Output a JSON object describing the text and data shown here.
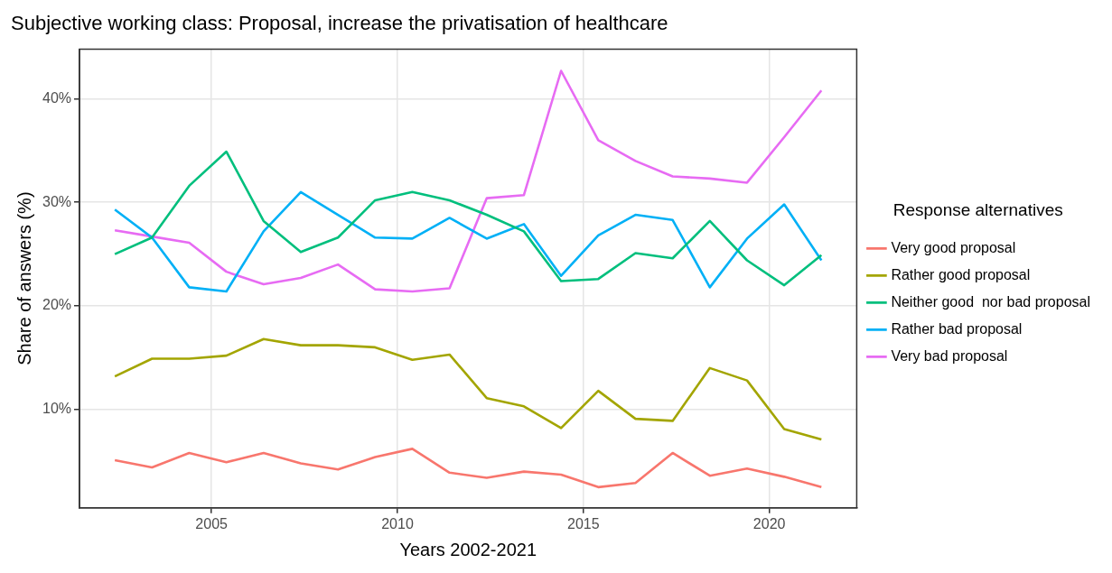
{
  "chart_data": {
    "type": "line",
    "title": "Subjective working class: Proposal, increase the privatisation of healthcare",
    "xlabel": "Years 2002-2021",
    "ylabel": "Share of answers (%)",
    "legend_title": "Response alternatives",
    "x": [
      2002.4,
      2003.4,
      2004.4,
      2005.4,
      2006.4,
      2007.4,
      2008.4,
      2009.4,
      2010.4,
      2011.4,
      2012.4,
      2013.4,
      2014.4,
      2015.4,
      2016.4,
      2017.4,
      2018.4,
      2019.4,
      2020.4,
      2021.4
    ],
    "xlim": [
      2001.45,
      2022.35
    ],
    "xticks": [
      2005,
      2010,
      2015,
      2020
    ],
    "ylim": [
      0.5,
      44.8
    ],
    "yticks": [
      {
        "value": 10,
        "label": "10%"
      },
      {
        "value": 20,
        "label": "20%"
      },
      {
        "value": 30,
        "label": "30%"
      },
      {
        "value": 40,
        "label": "40%"
      }
    ],
    "grid": true,
    "legend": "right",
    "marker": "none",
    "line_style": "solid",
    "series": [
      {
        "name": "Very good proposal",
        "color": "#f8766d",
        "values": [
          5.1,
          4.4,
          5.8,
          4.9,
          5.8,
          4.8,
          4.2,
          5.4,
          6.2,
          3.9,
          3.4,
          4.0,
          3.7,
          2.5,
          2.9,
          5.8,
          3.6,
          4.3,
          3.5,
          2.5
        ]
      },
      {
        "name": "Rather good proposal",
        "color": "#a3a500",
        "values": [
          13.2,
          14.9,
          14.9,
          15.2,
          16.8,
          16.2,
          16.2,
          16.0,
          14.8,
          15.3,
          11.1,
          10.3,
          8.2,
          11.8,
          9.1,
          8.9,
          14.0,
          12.8,
          8.1,
          7.1
        ]
      },
      {
        "name": "Neither good  nor bad proposal",
        "color": "#00bf7d",
        "values": [
          25.0,
          26.6,
          31.6,
          34.9,
          28.2,
          25.2,
          26.6,
          30.2,
          31.0,
          30.2,
          28.8,
          27.2,
          22.4,
          22.6,
          25.1,
          24.6,
          28.2,
          24.4,
          22.0,
          24.9
        ]
      },
      {
        "name": "Rather bad proposal",
        "color": "#00b0f6",
        "values": [
          29.3,
          26.6,
          21.8,
          21.4,
          27.2,
          31.0,
          28.8,
          26.6,
          26.5,
          28.5,
          26.5,
          27.9,
          22.9,
          26.8,
          28.8,
          28.3,
          21.8,
          26.5,
          29.8,
          24.4
        ]
      },
      {
        "name": "Very bad proposal",
        "color": "#e76bf3",
        "values": [
          27.3,
          26.7,
          26.1,
          23.3,
          22.1,
          22.7,
          24.0,
          21.6,
          21.4,
          21.7,
          30.4,
          30.7,
          42.7,
          36.0,
          34.0,
          32.5,
          32.3,
          31.9,
          36.3,
          40.8
        ]
      }
    ]
  }
}
